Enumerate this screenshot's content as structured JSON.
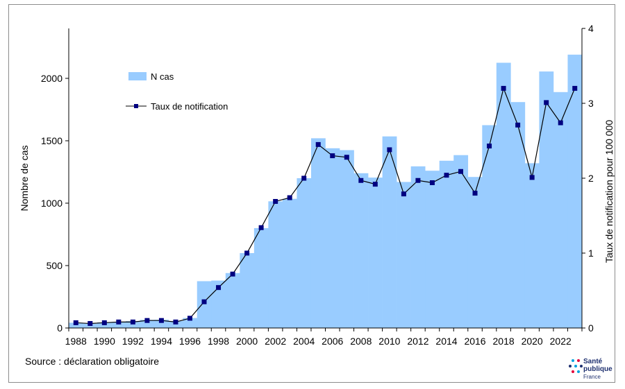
{
  "chart_data": {
    "type": "bar+line",
    "categories": [
      "1988",
      "1989",
      "1990",
      "1991",
      "1992",
      "1993",
      "1994",
      "1995",
      "1996",
      "1997",
      "1998",
      "1999",
      "2000",
      "2001",
      "2002",
      "2003",
      "2004",
      "2005",
      "2006",
      "2007",
      "2008",
      "2009",
      "2010",
      "2011",
      "2012",
      "2013",
      "2014",
      "2015",
      "2016",
      "2017",
      "2018",
      "2019",
      "2020",
      "2021",
      "2022",
      "2023"
    ],
    "x_tick_labels": [
      "1988",
      "1990",
      "1992",
      "1994",
      "1996",
      "1998",
      "2000",
      "2002",
      "2004",
      "2006",
      "2008",
      "2010",
      "2012",
      "2014",
      "2016",
      "2018",
      "2020",
      "2022"
    ],
    "series": [
      {
        "name": "N cas",
        "kind": "bar",
        "axis": "left",
        "color": "#99ccff",
        "values": [
          42,
          35,
          45,
          48,
          55,
          65,
          66,
          56,
          80,
          375,
          380,
          440,
          600,
          800,
          1015,
          1035,
          1200,
          1520,
          1440,
          1425,
          1240,
          1205,
          1535,
          1170,
          1295,
          1260,
          1340,
          1385,
          1210,
          1625,
          2125,
          1810,
          1320,
          2055,
          1890,
          2190
        ]
      },
      {
        "name": "Taux de notification",
        "kind": "line",
        "axis": "right",
        "color": "#000080",
        "line_color": "#000000",
        "values": [
          0.07,
          0.06,
          0.07,
          0.08,
          0.08,
          0.1,
          0.1,
          0.08,
          0.13,
          0.35,
          0.54,
          0.72,
          1.0,
          1.34,
          1.69,
          1.74,
          2.0,
          2.45,
          2.3,
          2.28,
          1.97,
          1.92,
          2.38,
          1.79,
          1.97,
          1.94,
          2.04,
          2.09,
          1.8,
          2.43,
          3.2,
          2.71,
          2.01,
          3.01,
          2.74,
          3.2
        ]
      }
    ],
    "y_left": {
      "label": "Nombre de cas",
      "ylim": [
        0,
        2400
      ],
      "ticks": [
        "0",
        "500",
        "1000",
        "1500",
        "2000"
      ]
    },
    "y_right": {
      "label": "Taux de notification pour 100 000",
      "ylim": [
        0,
        4
      ],
      "ticks": [
        "0",
        "1",
        "2",
        "3",
        "4"
      ]
    },
    "legend_placement": "top-left",
    "grid": false
  },
  "source_text": "Source : déclaration obligatoire",
  "logo": {
    "line1": "Santé",
    "line2": "publique",
    "line3": "France"
  }
}
